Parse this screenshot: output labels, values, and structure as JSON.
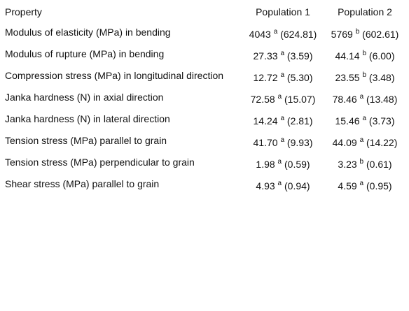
{
  "table": {
    "header": [
      "Property",
      "Population 1",
      "Population 2"
    ],
    "rows": [
      [
        "Modulus of elasticity (MPa) in bending",
        {
          "value": "4043",
          "sup": "a",
          "sd": "(624.81)"
        },
        {
          "value": "5769",
          "sup": "b",
          "sd": "(602.61)"
        }
      ],
      [
        "Modulus of rupture (MPa) in bending",
        {
          "value": "27.33",
          "sup": "a",
          "sd": "(3.59)"
        },
        {
          "value": "44.14",
          "sup": "b",
          "sd": "(6.00)"
        }
      ],
      [
        "Compression stress (MPa) in longitudinal direction",
        {
          "value": "12.72",
          "sup": "a",
          "sd": "(5.30)"
        },
        {
          "value": "23.55",
          "sup": "b",
          "sd": "(3.48)"
        }
      ],
      [
        "Janka hardness (N) in axial direction",
        {
          "value": "72.58",
          "sup": "a",
          "sd": "(15.07)"
        },
        {
          "value": "78.46",
          "sup": "a",
          "sd": "(13.48)"
        }
      ],
      [
        "Janka hardness (N) in lateral direction",
        {
          "value": "14.24",
          "sup": "a",
          "sd": "(2.81)"
        },
        {
          "value": "15.46",
          "sup": "a",
          "sd": "(3.73)"
        }
      ],
      [
        "Tension stress (MPa) parallel to grain",
        {
          "value": "41.70",
          "sup": "a",
          "sd": "(9.93)"
        },
        {
          "value": "44.09",
          "sup": "a",
          "sd": "(14.22)"
        }
      ],
      [
        "Tension stress (MPa) perpendicular to grain",
        {
          "value": "1.98",
          "sup": "a",
          "sd": "(0.59)"
        },
        {
          "value": "3.23",
          "sup": "b",
          "sd": "(0.61)"
        }
      ],
      [
        "Shear stress (MPa) parallel to grain",
        {
          "value": "4.93",
          "sup": "a",
          "sd": "(0.94)"
        },
        {
          "value": "4.59",
          "sup": "a",
          "sd": "(0.95)"
        }
      ]
    ]
  }
}
